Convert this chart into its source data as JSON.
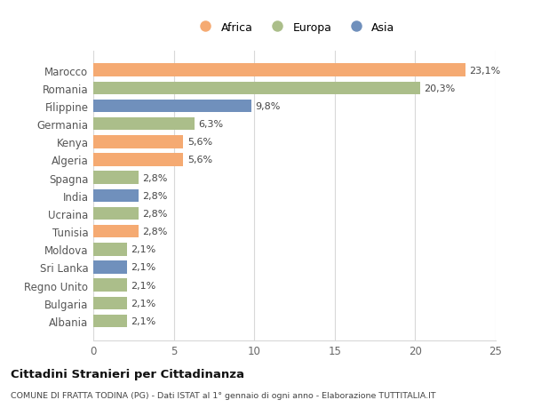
{
  "countries": [
    "Marocco",
    "Romania",
    "Filippine",
    "Germania",
    "Kenya",
    "Algeria",
    "Spagna",
    "India",
    "Ucraina",
    "Tunisia",
    "Moldova",
    "Sri Lanka",
    "Regno Unito",
    "Bulgaria",
    "Albania"
  ],
  "values": [
    23.1,
    20.3,
    9.8,
    6.3,
    5.6,
    5.6,
    2.8,
    2.8,
    2.8,
    2.8,
    2.1,
    2.1,
    2.1,
    2.1,
    2.1
  ],
  "labels": [
    "23,1%",
    "20,3%",
    "9,8%",
    "6,3%",
    "5,6%",
    "5,6%",
    "2,8%",
    "2,8%",
    "2,8%",
    "2,8%",
    "2,1%",
    "2,1%",
    "2,1%",
    "2,1%",
    "2,1%"
  ],
  "continent": [
    "Africa",
    "Europa",
    "Asia",
    "Europa",
    "Africa",
    "Africa",
    "Europa",
    "Asia",
    "Europa",
    "Africa",
    "Europa",
    "Asia",
    "Europa",
    "Europa",
    "Europa"
  ],
  "colors": {
    "Africa": "#F5AA72",
    "Europa": "#ABBE8A",
    "Asia": "#7090BC"
  },
  "legend_labels": [
    "Africa",
    "Europa",
    "Asia"
  ],
  "xlim": [
    0,
    25
  ],
  "xticks": [
    0,
    5,
    10,
    15,
    20,
    25
  ],
  "title": "Cittadini Stranieri per Cittadinanza",
  "subtitle": "COMUNE DI FRATTA TODINA (PG) - Dati ISTAT al 1° gennaio di ogni anno - Elaborazione TUTTITALIA.IT",
  "background_color": "#ffffff",
  "grid_color": "#d8d8d8",
  "bar_height": 0.72
}
